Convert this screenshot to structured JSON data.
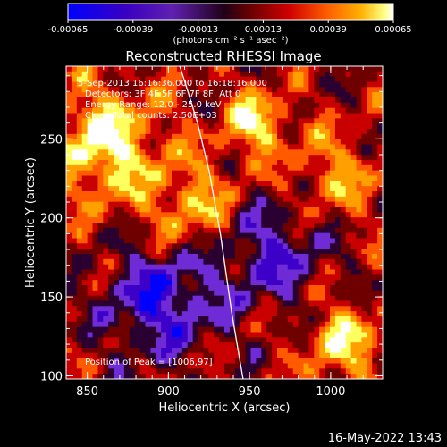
{
  "chart_data": {
    "type": "heatmap",
    "title": "Reconstructed RHESSI Image",
    "xlabel": "Heliocentric X (arcsec)",
    "ylabel": "Heliocentric Y (arcsec)",
    "xlim": [
      837,
      1032
    ],
    "ylim": [
      98,
      296
    ],
    "x_ticks": [
      850,
      900,
      950,
      1000
    ],
    "y_ticks": [
      100,
      150,
      200,
      250
    ],
    "colorbar": {
      "ticks": [
        "-0.00065",
        "-0.00039",
        "-0.00013",
        "0.00013",
        "0.00039",
        "0.00065"
      ],
      "range": [
        -0.00065,
        0.00065
      ],
      "units_label": "(photons cm⁻² s⁻¹ asec⁻²)",
      "colors": [
        "#0000ff",
        "#3d00c8",
        "#6f2bd6",
        "#2a0030",
        "#6e0000",
        "#c80000",
        "#ff5a00",
        "#ffa000",
        "#ffff60",
        "#ffffff"
      ]
    },
    "annotations": [
      "5-Sep-2013 16:16:36.000 to 16:18:16.000",
      "Detectors: 3F 4F 5F 6F 7F 8F, Att 0",
      "Energy Range: 12.0 - 25.0 keV",
      "Clean    Total counts: 2.50E+03"
    ],
    "peak_label": "Position of Peak = [1006,97]",
    "limb_curve": {
      "x": [
        907,
        912,
        918,
        925,
        932,
        939,
        946
      ],
      "y": [
        296,
        280,
        260,
        230,
        190,
        140,
        98
      ]
    }
  },
  "footer": {
    "timestamp": "16-May-2022 13:43"
  }
}
